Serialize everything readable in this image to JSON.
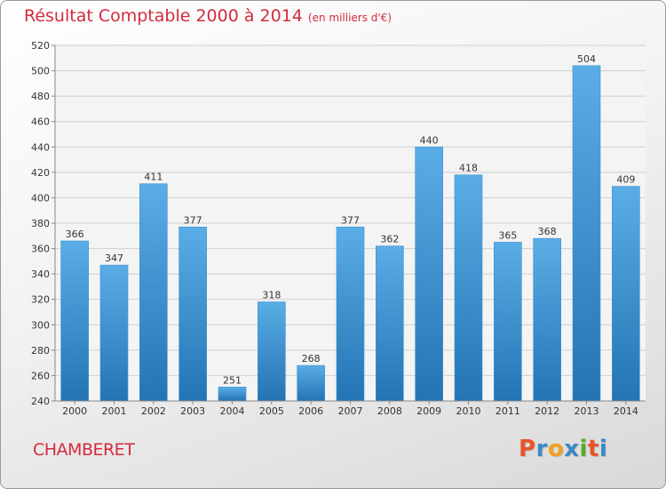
{
  "header": {
    "title": "Résultat Comptable 2000 à 2014",
    "subtitle": "(en milliers d'€)"
  },
  "footer": {
    "commune": "CHAMBERET",
    "logo_text": "Proxiti",
    "logo_colors": [
      "#e8542a",
      "#3a88c8",
      "#f0a020",
      "#3a88c8",
      "#5aaa2a",
      "#e8542a",
      "#3a88c8"
    ]
  },
  "colors": {
    "title": "#d42b3e",
    "bar_top": "#5aade6",
    "bar_bottom": "#2474b4",
    "grid": "#cfcfcf"
  },
  "chart_data": {
    "type": "bar",
    "categories": [
      "2000",
      "2001",
      "2002",
      "2003",
      "2004",
      "2005",
      "2006",
      "2007",
      "2008",
      "2009",
      "2010",
      "2011",
      "2012",
      "2013",
      "2014"
    ],
    "values": [
      366,
      347,
      411,
      377,
      251,
      318,
      268,
      377,
      362,
      440,
      418,
      365,
      368,
      504,
      409
    ],
    "ylim": [
      240,
      520
    ],
    "yticks": [
      240,
      260,
      280,
      300,
      320,
      340,
      360,
      380,
      400,
      420,
      440,
      460,
      480,
      500,
      520
    ],
    "grid": true,
    "data_labels": true
  }
}
